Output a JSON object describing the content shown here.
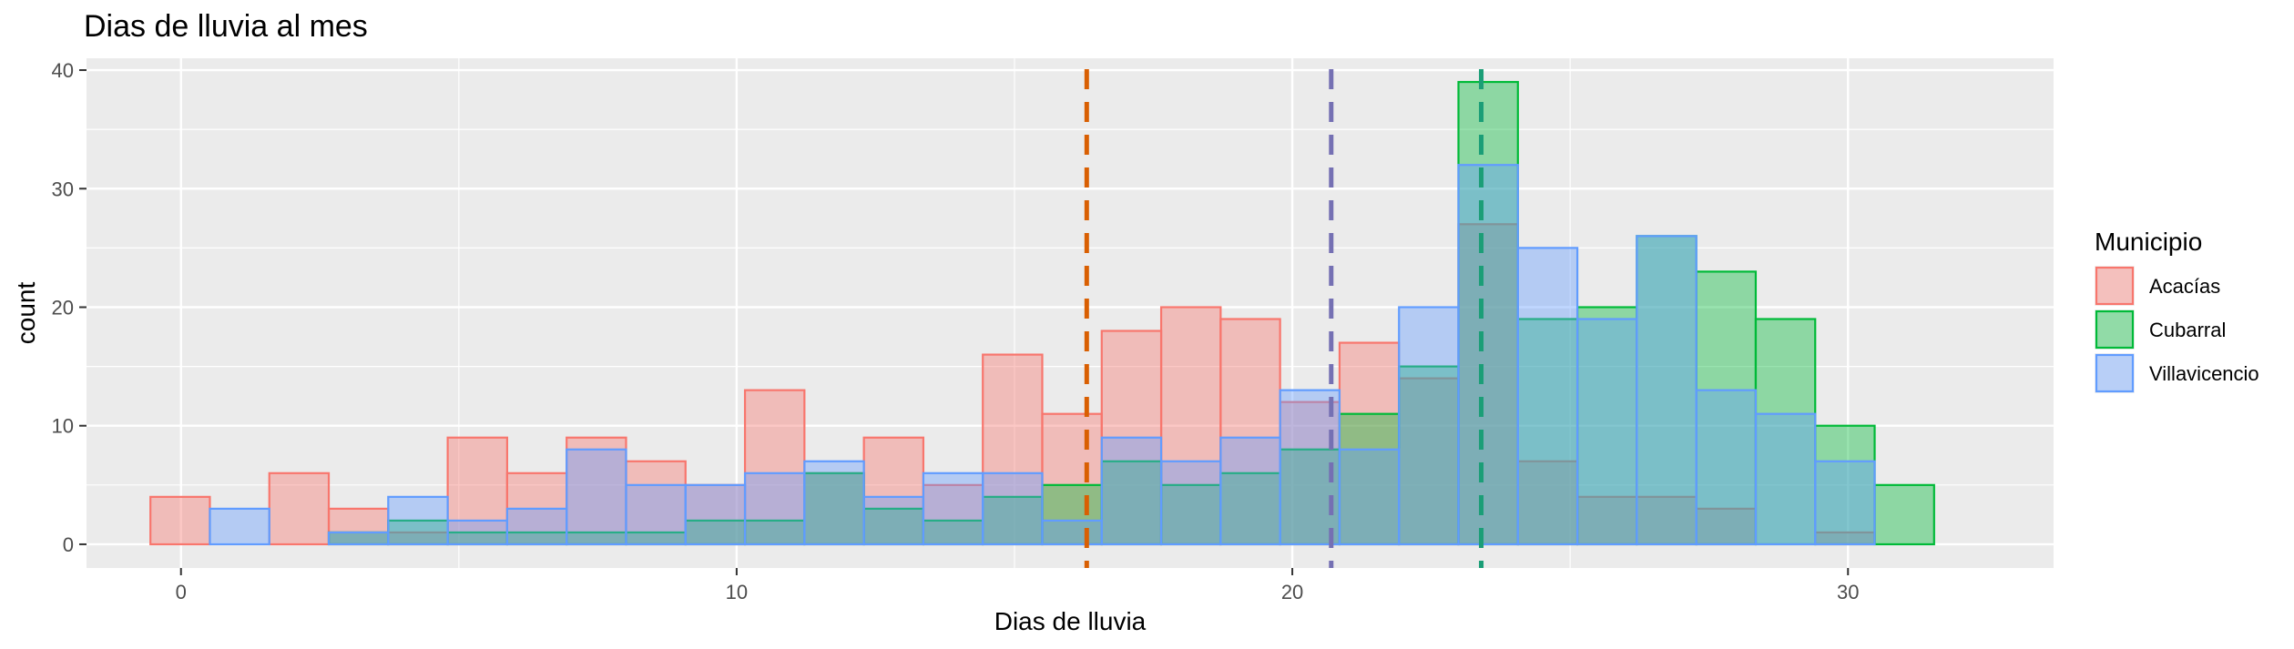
{
  "chart_data": {
    "type": "histogram",
    "title": "Dias de lluvia al mes",
    "xlabel": "Dias de lluvia",
    "ylabel": "count",
    "xlim": [
      -1.7,
      33.7
    ],
    "ylim": [
      -2,
      41
    ],
    "x_ticks": [
      0,
      10,
      20,
      30
    ],
    "y_ticks": [
      0,
      10,
      20,
      30,
      40
    ],
    "x_tick_labels": [
      "0",
      "10",
      "20",
      "30"
    ],
    "y_tick_labels": [
      "0",
      "10",
      "20",
      "30",
      "40"
    ],
    "grid": true,
    "legend": {
      "title": "Municipio",
      "position": "right"
    },
    "bin_starts": [
      -0.55,
      0.52,
      1.59,
      2.66,
      3.73,
      4.8,
      5.87,
      6.94,
      8.01,
      9.08,
      10.15,
      11.22,
      12.29,
      13.36,
      14.43,
      15.5,
      16.57,
      17.64,
      18.71,
      19.78,
      20.85,
      21.92,
      22.99,
      24.06,
      25.13,
      26.2,
      27.27,
      28.34,
      29.41,
      30.48
    ],
    "bin_width": 1.07,
    "series": [
      {
        "name": "Acacías",
        "fill": "#F8766D",
        "stroke": "#F8766D",
        "values": [
          4,
          0,
          6,
          3,
          1,
          9,
          6,
          9,
          7,
          5,
          13,
          6,
          9,
          5,
          16,
          11,
          18,
          20,
          19,
          12,
          17,
          14,
          27,
          7,
          4,
          4,
          3,
          0,
          1,
          0
        ]
      },
      {
        "name": "Cubarral",
        "fill": "#00BA38",
        "stroke": "#00BA38",
        "values": [
          0,
          0,
          0,
          1,
          2,
          1,
          1,
          1,
          1,
          2,
          2,
          6,
          3,
          2,
          4,
          5,
          7,
          5,
          6,
          8,
          11,
          15,
          39,
          19,
          20,
          26,
          23,
          19,
          10,
          5
        ]
      },
      {
        "name": "Villavicencio",
        "fill": "#619CFF",
        "stroke": "#619CFF",
        "values": [
          0,
          3,
          0,
          1,
          4,
          2,
          3,
          8,
          5,
          5,
          6,
          7,
          4,
          6,
          6,
          2,
          9,
          7,
          9,
          13,
          8,
          20,
          32,
          25,
          19,
          26,
          13,
          11,
          7,
          0
        ]
      }
    ],
    "mean_lines": [
      {
        "name": "Acacías",
        "x": 16.3,
        "color": "#D95F02"
      },
      {
        "name": "Villavicencio",
        "x": 20.7,
        "color": "#7570B3"
      },
      {
        "name": "Cubarral",
        "x": 23.4,
        "color": "#1B9E77"
      }
    ],
    "colors": {
      "panel_background": "#EBEBEB",
      "grid_line": "#FFFFFF",
      "text": "#1A1A1A",
      "tick_text": "#4D4D4D"
    }
  }
}
